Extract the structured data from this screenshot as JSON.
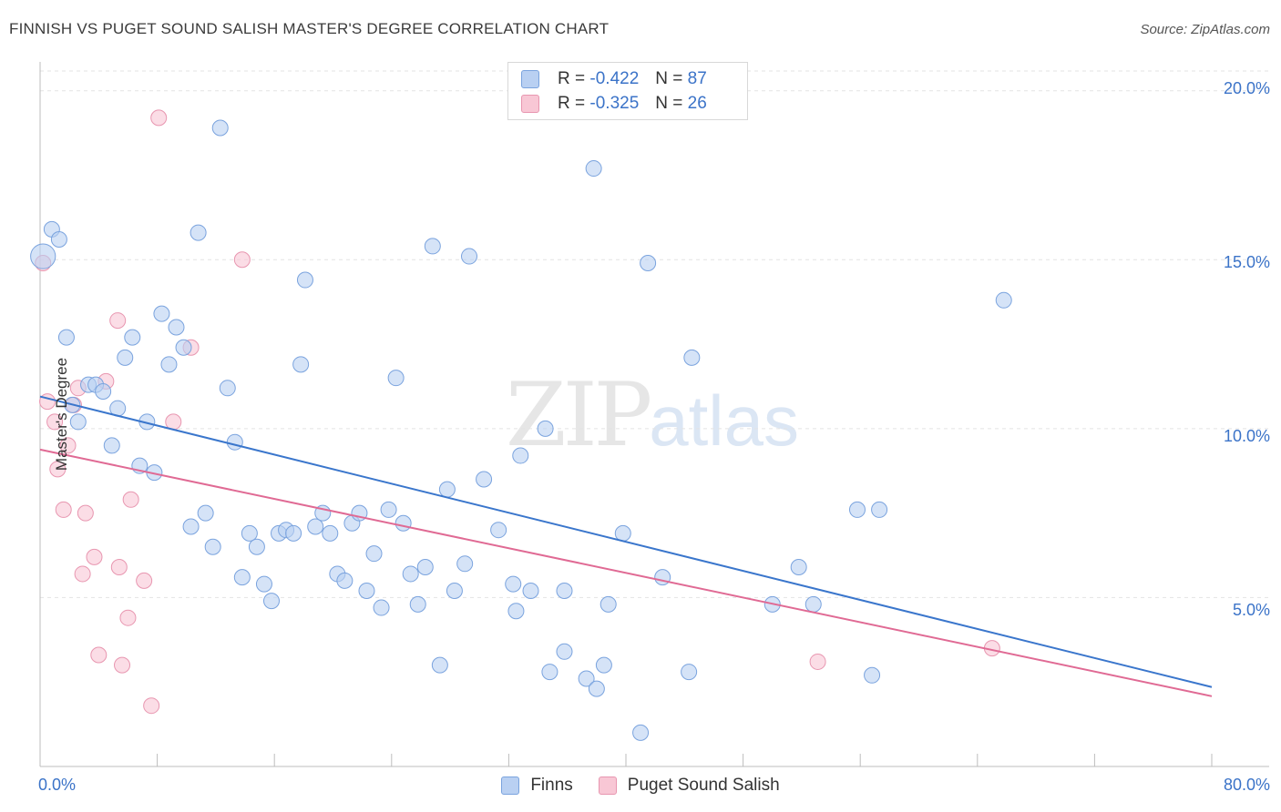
{
  "header": {
    "title": "FINNISH VS PUGET SOUND SALISH MASTER'S DEGREE CORRELATION CHART",
    "source": "Source: ZipAtlas.com"
  },
  "watermark": {
    "zip": "ZIP",
    "atlas": "atlas"
  },
  "colors": {
    "finns_fill": "#b9d0f2",
    "finns_stroke": "#7aa3de",
    "finns_line": "#3a76cc",
    "salish_fill": "#f8c7d5",
    "salish_stroke": "#e896b0",
    "salish_line": "#e06a94",
    "grid": "#e3e3e3",
    "tick_text": "#3b73c8"
  },
  "legend_top": [
    {
      "r_label": "R =",
      "r_value": "-0.422",
      "n_label": "N =",
      "n_value": "87"
    },
    {
      "r_label": "R =",
      "r_value": "-0.325",
      "n_label": "N =",
      "n_value": "26"
    }
  ],
  "legend_bottom": [
    "Finns",
    "Puget Sound Salish"
  ],
  "chart_data": {
    "type": "scatter",
    "title": "FINNISH VS PUGET SOUND SALISH MASTER'S DEGREE CORRELATION CHART",
    "xlabel": "",
    "ylabel": "Master's Degree",
    "xlim": [
      0,
      80
    ],
    "ylim": [
      0,
      20.8
    ],
    "x_tick_labels": [
      "0.0%",
      "80.0%"
    ],
    "y_ticks": [
      5,
      10,
      15,
      20
    ],
    "y_tick_labels": [
      "5.0%",
      "10.0%",
      "15.0%",
      "20.0%"
    ],
    "grid": true,
    "legend_position": "top-center",
    "series": [
      {
        "name": "Finns",
        "r": -0.422,
        "n": 87,
        "trend": {
          "x": [
            0,
            80
          ],
          "y": [
            10.95,
            2.35
          ]
        },
        "points": [
          [
            0.2,
            15.1,
            1.6
          ],
          [
            0.8,
            15.9,
            1
          ],
          [
            1.3,
            15.6,
            1
          ],
          [
            1.8,
            12.7,
            1
          ],
          [
            2.2,
            10.7,
            1
          ],
          [
            2.6,
            10.2,
            1
          ],
          [
            3.3,
            11.3,
            1
          ],
          [
            3.8,
            11.3,
            1
          ],
          [
            4.3,
            11.1,
            1
          ],
          [
            4.9,
            9.5,
            1
          ],
          [
            5.3,
            10.6,
            1
          ],
          [
            5.8,
            12.1,
            1
          ],
          [
            6.3,
            12.7,
            1
          ],
          [
            6.8,
            8.9,
            1
          ],
          [
            7.3,
            10.2,
            1
          ],
          [
            7.8,
            8.7,
            1
          ],
          [
            8.3,
            13.4,
            1
          ],
          [
            8.8,
            11.9,
            1
          ],
          [
            9.3,
            13.0,
            1
          ],
          [
            9.8,
            12.4,
            1
          ],
          [
            10.3,
            7.1,
            1
          ],
          [
            10.8,
            15.8,
            1
          ],
          [
            11.3,
            7.5,
            1
          ],
          [
            11.8,
            6.5,
            1
          ],
          [
            12.3,
            18.9,
            1
          ],
          [
            12.8,
            11.2,
            1
          ],
          [
            13.3,
            9.6,
            1
          ],
          [
            13.8,
            5.6,
            1
          ],
          [
            14.3,
            6.9,
            1
          ],
          [
            14.8,
            6.5,
            1
          ],
          [
            15.3,
            5.4,
            1
          ],
          [
            15.8,
            4.9,
            1
          ],
          [
            16.3,
            6.9,
            1
          ],
          [
            16.8,
            7.0,
            1
          ],
          [
            17.3,
            6.9,
            1
          ],
          [
            17.8,
            11.9,
            1
          ],
          [
            18.1,
            14.4,
            1
          ],
          [
            18.8,
            7.1,
            1
          ],
          [
            19.3,
            7.5,
            1
          ],
          [
            19.8,
            6.9,
            1
          ],
          [
            20.3,
            5.7,
            1
          ],
          [
            20.8,
            5.5,
            1
          ],
          [
            21.3,
            7.2,
            1
          ],
          [
            21.8,
            7.5,
            1
          ],
          [
            22.3,
            5.2,
            1
          ],
          [
            22.8,
            6.3,
            1
          ],
          [
            23.3,
            4.7,
            1
          ],
          [
            23.8,
            7.6,
            1
          ],
          [
            24.3,
            11.5,
            1
          ],
          [
            24.8,
            7.2,
            1
          ],
          [
            25.3,
            5.7,
            1
          ],
          [
            25.8,
            4.8,
            1
          ],
          [
            26.3,
            5.9,
            1
          ],
          [
            26.8,
            15.4,
            1
          ],
          [
            27.3,
            3.0,
            1
          ],
          [
            27.8,
            8.2,
            1
          ],
          [
            28.3,
            5.2,
            1
          ],
          [
            29.0,
            6.0,
            1
          ],
          [
            29.3,
            15.1,
            1
          ],
          [
            30.3,
            8.5,
            1
          ],
          [
            31.3,
            7.0,
            1
          ],
          [
            32.3,
            5.4,
            1
          ],
          [
            32.5,
            4.6,
            1
          ],
          [
            32.8,
            9.2,
            1
          ],
          [
            33.5,
            5.2,
            1
          ],
          [
            34.5,
            10.0,
            1
          ],
          [
            34.8,
            2.8,
            1
          ],
          [
            35.8,
            3.4,
            1
          ],
          [
            35.8,
            5.2,
            1
          ],
          [
            37.3,
            2.6,
            1
          ],
          [
            37.8,
            17.7,
            1
          ],
          [
            38.0,
            2.3,
            1
          ],
          [
            38.5,
            3.0,
            1
          ],
          [
            38.8,
            4.8,
            1
          ],
          [
            39.8,
            6.9,
            1
          ],
          [
            41.0,
            1.0,
            1
          ],
          [
            41.5,
            14.9,
            1
          ],
          [
            42.5,
            5.6,
            1
          ],
          [
            44.3,
            2.8,
            1
          ],
          [
            44.5,
            12.1,
            1
          ],
          [
            50.0,
            4.8,
            1
          ],
          [
            51.8,
            5.9,
            1
          ],
          [
            52.8,
            4.8,
            1
          ],
          [
            55.8,
            7.6,
            1
          ],
          [
            56.8,
            2.7,
            1
          ],
          [
            57.3,
            7.6,
            1
          ],
          [
            65.8,
            13.8,
            1
          ]
        ]
      },
      {
        "name": "Puget Sound Salish",
        "r": -0.325,
        "n": 26,
        "trend": {
          "x": [
            0,
            80
          ],
          "y": [
            9.38,
            2.08
          ]
        },
        "points": [
          [
            0.2,
            14.9,
            1
          ],
          [
            0.5,
            10.8,
            1
          ],
          [
            1.0,
            10.2,
            1
          ],
          [
            1.2,
            8.8,
            1
          ],
          [
            1.6,
            7.6,
            1
          ],
          [
            1.9,
            9.5,
            1
          ],
          [
            2.3,
            10.7,
            1
          ],
          [
            2.6,
            11.2,
            1
          ],
          [
            2.9,
            5.7,
            1
          ],
          [
            3.1,
            7.5,
            1
          ],
          [
            3.7,
            6.2,
            1
          ],
          [
            4.0,
            3.3,
            1
          ],
          [
            4.5,
            11.4,
            1
          ],
          [
            5.3,
            13.2,
            1
          ],
          [
            5.4,
            5.9,
            1
          ],
          [
            5.6,
            3.0,
            1
          ],
          [
            6.0,
            4.4,
            1
          ],
          [
            6.2,
            7.9,
            1
          ],
          [
            7.1,
            5.5,
            1
          ],
          [
            7.6,
            1.8,
            1
          ],
          [
            8.1,
            19.2,
            1
          ],
          [
            9.1,
            10.2,
            1
          ],
          [
            10.3,
            12.4,
            1
          ],
          [
            13.8,
            15.0,
            1
          ],
          [
            53.1,
            3.1,
            1
          ],
          [
            65.0,
            3.5,
            1
          ]
        ]
      }
    ]
  }
}
